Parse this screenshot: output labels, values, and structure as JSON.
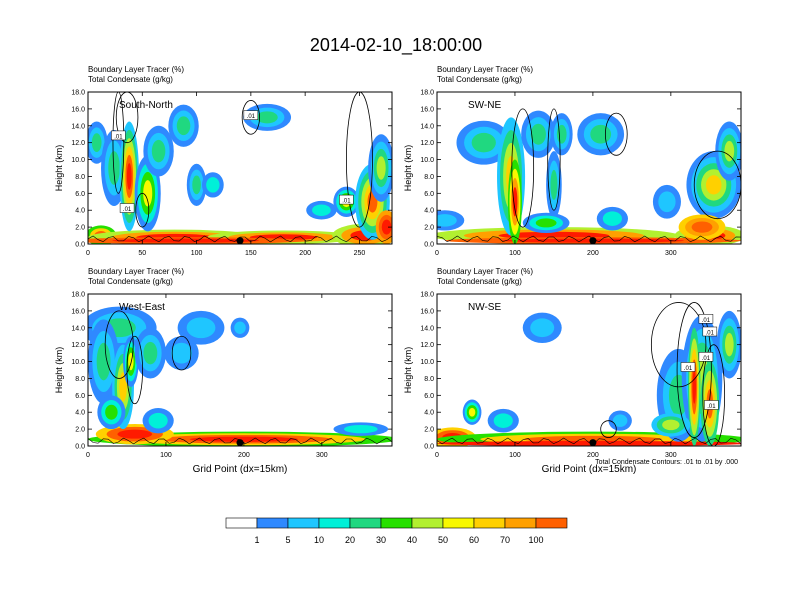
{
  "title": "2014-02-10_18:00:00",
  "colors": {
    "levels": [
      "#ffffff",
      "#2f89ff",
      "#1fc6ff",
      "#00f0d8",
      "#20d880",
      "#26e000",
      "#b2f030",
      "#f8f800",
      "#ffd000",
      "#ffa000",
      "#ff6000",
      "#ff1a00"
    ],
    "contour": "#000000"
  },
  "colorbar": {
    "labels": [
      "1",
      "5",
      "10",
      "20",
      "30",
      "40",
      "50",
      "60",
      "70",
      "100"
    ]
  },
  "footnote": "Total Condensate Contours: .01 to .01 by .000",
  "chart_data": [
    {
      "type": "heatmap",
      "panel_label": "South-North",
      "subtitle_line1": "Boundary Layer Tracer   (%)",
      "subtitle_line2": "Total Condensate   (g/kg)",
      "ylabel": "Height (km)",
      "xlabel": "",
      "xlim": [
        0,
        280
      ],
      "ylim": [
        0,
        18
      ],
      "xticks": [
        0,
        50,
        100,
        150,
        200,
        250
      ],
      "yticks": [
        "0.0",
        "2.0",
        "4.0",
        "6.0",
        "8.0",
        "10.0",
        "12.0",
        "14.0",
        "16.0",
        "18.0"
      ],
      "marker_x": 140,
      "contour_labels": [
        ".01",
        ".01",
        ".01",
        ".01"
      ]
    },
    {
      "type": "heatmap",
      "panel_label": "SW-NE",
      "subtitle_line1": "Boundary Layer Tracer   (%)",
      "subtitle_line2": "Total Condensate   (g/kg)",
      "ylabel": "Height (km)",
      "xlabel": "",
      "xlim": [
        0,
        390
      ],
      "ylim": [
        0,
        18
      ],
      "xticks": [
        0,
        100,
        200,
        300
      ],
      "yticks": [
        "0.0",
        "2.0",
        "4.0",
        "6.0",
        "8.0",
        "10.0",
        "12.0",
        "14.0",
        "16.0",
        "18.0"
      ],
      "marker_x": 200,
      "contour_labels": []
    },
    {
      "type": "heatmap",
      "panel_label": "West-East",
      "subtitle_line1": "Boundary Layer Tracer   (%)",
      "subtitle_line2": "Total Condensate   (g/kg)",
      "ylabel": "Height (km)",
      "xlabel": "Grid Point (dx=15km)",
      "xlim": [
        0,
        390
      ],
      "ylim": [
        0,
        18
      ],
      "xticks": [
        0,
        100,
        200,
        300
      ],
      "yticks": [
        "0.0",
        "2.0",
        "4.0",
        "6.0",
        "8.0",
        "10.0",
        "12.0",
        "14.0",
        "16.0",
        "18.0"
      ],
      "marker_x": 195,
      "contour_labels": []
    },
    {
      "type": "heatmap",
      "panel_label": "NW-SE",
      "subtitle_line1": "Boundary Layer Tracer   (%)",
      "subtitle_line2": "Total Condensate   (g/kg)",
      "ylabel": "Height (km)",
      "xlabel": "Grid Point (dx=15km)",
      "xlim": [
        0,
        390
      ],
      "ylim": [
        0,
        18
      ],
      "xticks": [
        0,
        100,
        200,
        300
      ],
      "yticks": [
        "0.0",
        "2.0",
        "4.0",
        "6.0",
        "8.0",
        "10.0",
        "12.0",
        "14.0",
        "16.0",
        "18.0"
      ],
      "marker_x": 200,
      "contour_labels": [
        ".01",
        ".01",
        ".01",
        ".01",
        ".01"
      ]
    }
  ]
}
